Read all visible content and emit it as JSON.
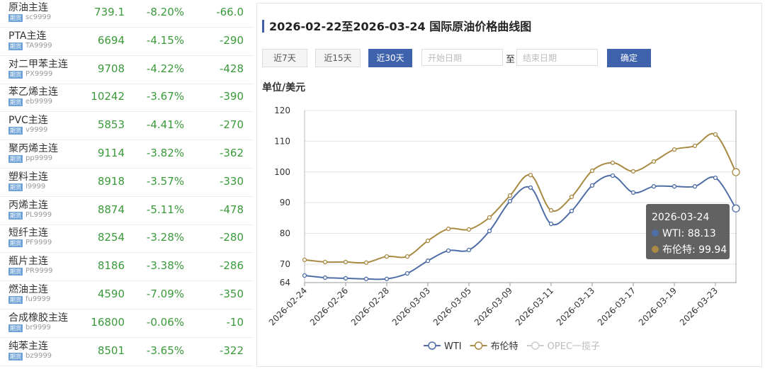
{
  "table": {
    "badge": "期货",
    "rows": [
      [
        "原油主连",
        "sc9999",
        "739.1",
        "-8.20%",
        "-66.0"
      ],
      [
        "PTA主连",
        "TA9999",
        "6694",
        "-4.15%",
        "-290"
      ],
      [
        "对二甲苯主连",
        "PX9999",
        "9708",
        "-4.22%",
        "-428"
      ],
      [
        "苯乙烯主连",
        "eb9999",
        "10242",
        "-3.67%",
        "-390"
      ],
      [
        "PVC主连",
        "v9999",
        "5853",
        "-4.41%",
        "-270"
      ],
      [
        "聚丙烯主连",
        "pp9999",
        "9114",
        "-3.82%",
        "-362"
      ],
      [
        "塑料主连",
        "l9999",
        "8918",
        "-3.57%",
        "-330"
      ],
      [
        "丙烯主连",
        "PL9999",
        "8874",
        "-5.11%",
        "-478"
      ],
      [
        "短纤主连",
        "PF9999",
        "8254",
        "-3.28%",
        "-280"
      ],
      [
        "瓶片主连",
        "PR9999",
        "8186",
        "-3.38%",
        "-286"
      ],
      [
        "燃油主连",
        "fu9999",
        "4590",
        "-7.09%",
        "-350"
      ],
      [
        "合成橡胶主连",
        "br9999",
        "16800",
        "-0.06%",
        "-10"
      ],
      [
        "纯苯主连",
        "bz9999",
        "8501",
        "-3.65%",
        "-322"
      ]
    ]
  },
  "controls": {
    "buttons": [
      "近7天",
      "近15天",
      "近30天"
    ],
    "start_placeholder": "开始日期",
    "to": "至",
    "end_placeholder": "结束日期",
    "confirm": "确定"
  },
  "chart_data": {
    "type": "line",
    "title": "2026-02-22至2026-03-24 国际原油价格曲线图",
    "ylabel": "单位/美元",
    "categories": [
      "2026-02-24",
      null,
      "2026-02-26",
      null,
      "2026-02-28",
      null,
      "2026-03-03",
      null,
      "2026-03-05",
      null,
      "2026-03-09",
      null,
      "2026-03-11",
      null,
      "2026-03-13",
      null,
      "2026-03-17",
      null,
      "2026-03-19",
      null,
      "2026-03-23",
      null
    ],
    "series": [
      {
        "name": "WTI",
        "color": "#4f6ea6",
        "values": [
          66.3,
          65.6,
          65.4,
          65.2,
          65.2,
          67.0,
          71.1,
          74.4,
          74.6,
          80.8,
          90.5,
          94.9,
          83.1,
          87.3,
          95.6,
          98.8,
          93.3,
          95.3,
          95.3,
          95.3,
          98.1,
          88.13
        ]
      },
      {
        "name": "布伦特",
        "color": "#a88a43",
        "values": [
          71.4,
          70.7,
          70.7,
          70.5,
          72.5,
          72.5,
          77.6,
          81.5,
          81.3,
          85.2,
          92.3,
          99.0,
          87.5,
          91.9,
          100.4,
          103.0,
          100.2,
          103.4,
          107.3,
          108.5,
          112.2,
          99.94
        ]
      }
    ],
    "hidden_series": [
      {
        "name": "OPEC一揽子",
        "color": "#cccccc"
      }
    ],
    "ylim": [
      64,
      120
    ],
    "yticks": [
      64,
      70,
      80,
      90,
      100,
      110,
      120
    ],
    "grid": true,
    "tooltip_title": "2026-03-24"
  }
}
